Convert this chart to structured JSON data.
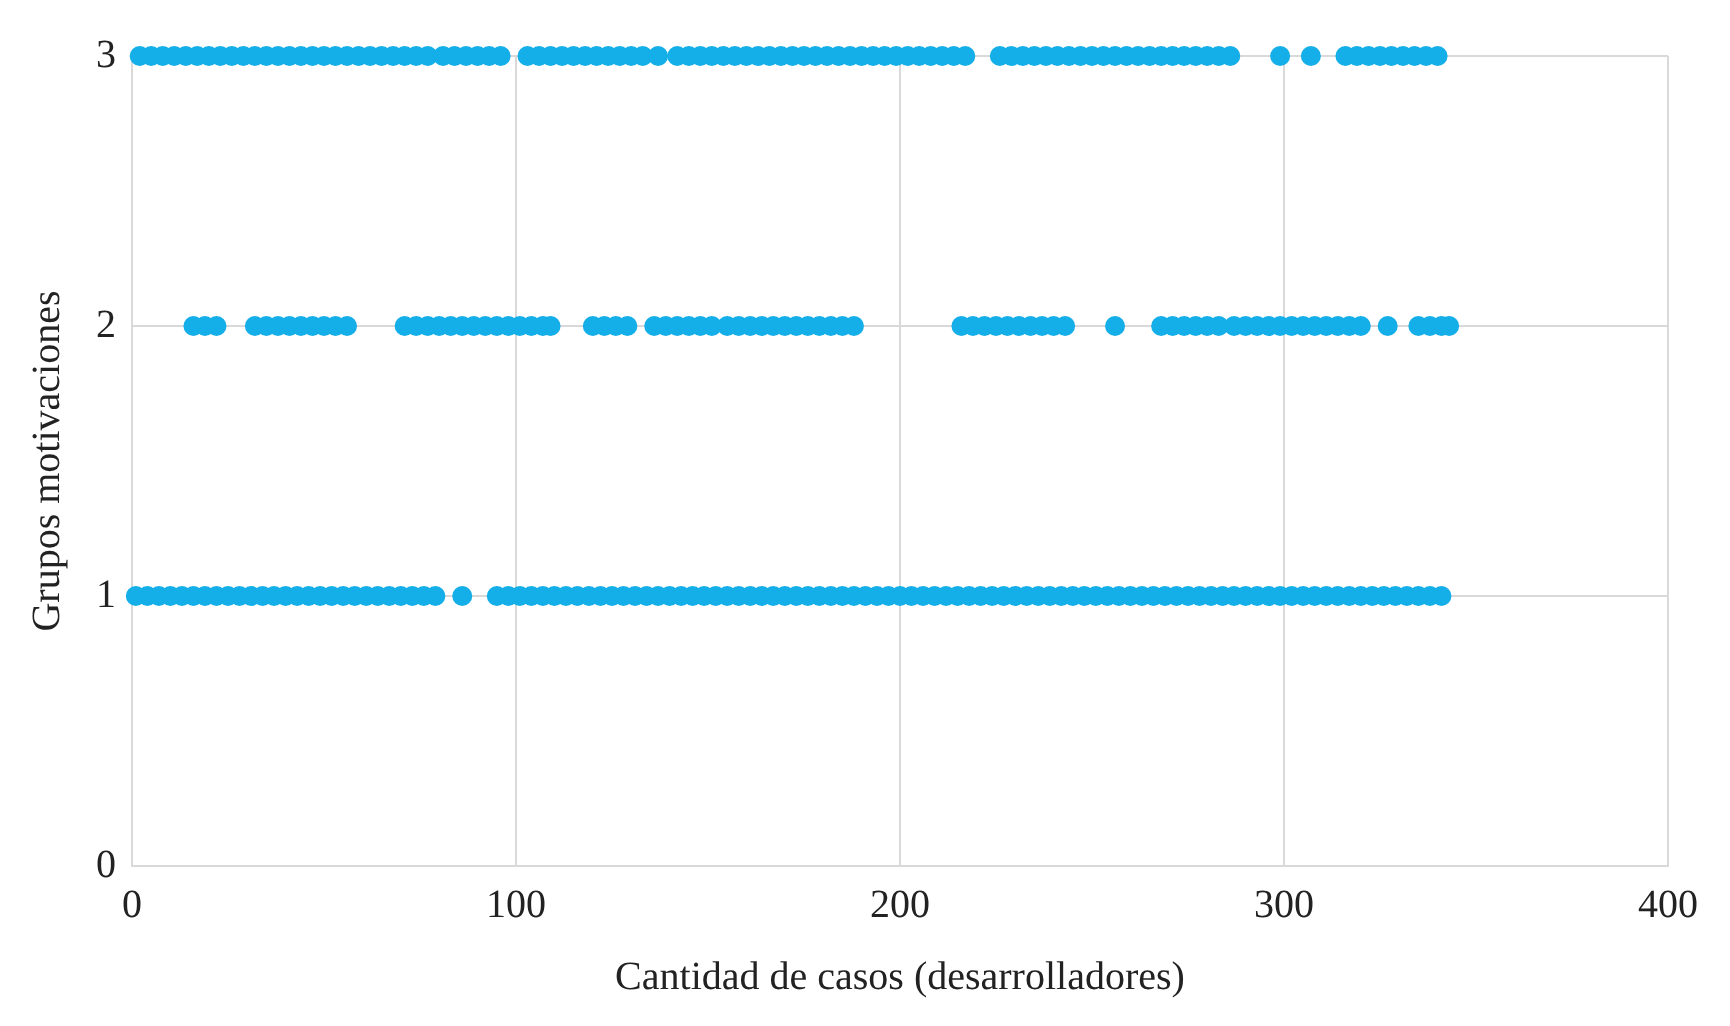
{
  "chart_data": {
    "type": "scatter",
    "xlabel": "Cantidad de casos (desarrolladores)",
    "ylabel": "Grupos motivaciones",
    "xlim": [
      0,
      400
    ],
    "xticks": [
      0,
      100,
      200,
      300,
      400
    ],
    "ylim": [
      0,
      3
    ],
    "yticks": [
      0,
      1,
      2,
      3
    ],
    "grid": true,
    "legend": false,
    "marker": "circle",
    "series": [
      {
        "color": "#14aee8",
        "x": [
          1,
          4,
          7,
          10,
          13,
          16,
          19,
          22,
          25,
          28,
          31,
          34,
          37,
          40,
          43,
          46,
          49,
          52,
          55,
          58,
          61,
          64,
          67,
          70,
          73,
          76,
          79,
          86,
          95,
          98,
          101,
          104,
          107,
          110,
          113,
          116,
          119,
          122,
          125,
          128,
          131,
          134,
          137,
          140,
          143,
          146,
          149,
          152,
          155,
          158,
          161,
          164,
          167,
          170,
          173,
          176,
          179,
          182,
          185,
          188,
          191,
          194,
          197,
          200,
          203,
          206,
          209,
          212,
          215,
          218,
          221,
          224,
          227,
          230,
          233,
          236,
          239,
          242,
          245,
          248,
          251,
          254,
          257,
          260,
          263,
          266,
          269,
          272,
          275,
          278,
          281,
          284,
          287,
          290,
          293,
          296,
          299,
          302,
          305,
          308,
          311,
          314,
          317,
          320,
          323,
          326,
          329,
          332,
          335,
          338,
          341
        ],
        "values": [
          1,
          1,
          1,
          1,
          1,
          1,
          1,
          1,
          1,
          1,
          1,
          1,
          1,
          1,
          1,
          1,
          1,
          1,
          1,
          1,
          1,
          1,
          1,
          1,
          1,
          1,
          1,
          1,
          1,
          1,
          1,
          1,
          1,
          1,
          1,
          1,
          1,
          1,
          1,
          1,
          1,
          1,
          1,
          1,
          1,
          1,
          1,
          1,
          1,
          1,
          1,
          1,
          1,
          1,
          1,
          1,
          1,
          1,
          1,
          1,
          1,
          1,
          1,
          1,
          1,
          1,
          1,
          1,
          1,
          1,
          1,
          1,
          1,
          1,
          1,
          1,
          1,
          1,
          1,
          1,
          1,
          1,
          1,
          1,
          1,
          1,
          1,
          1,
          1,
          1,
          1,
          1,
          1,
          1,
          1,
          1,
          1,
          1,
          1,
          1,
          1,
          1,
          1,
          1,
          1,
          1,
          1,
          1,
          1,
          1,
          1
        ]
      },
      {
        "color": "#14aee8",
        "x": [
          16,
          19,
          22,
          32,
          35,
          38,
          41,
          44,
          47,
          50,
          53,
          56,
          71,
          74,
          77,
          80,
          83,
          86,
          89,
          92,
          95,
          98,
          101,
          104,
          107,
          109,
          120,
          123,
          126,
          129,
          136,
          139,
          142,
          145,
          148,
          151,
          155,
          158,
          161,
          164,
          167,
          170,
          173,
          176,
          179,
          182,
          185,
          188,
          216,
          219,
          222,
          225,
          228,
          231,
          234,
          237,
          240,
          243,
          256,
          268,
          271,
          274,
          277,
          280,
          283,
          287,
          290,
          293,
          296,
          299,
          302,
          305,
          308,
          311,
          314,
          317,
          320,
          327,
          335,
          338,
          341,
          343
        ],
        "values": [
          2,
          2,
          2,
          2,
          2,
          2,
          2,
          2,
          2,
          2,
          2,
          2,
          2,
          2,
          2,
          2,
          2,
          2,
          2,
          2,
          2,
          2,
          2,
          2,
          2,
          2,
          2,
          2,
          2,
          2,
          2,
          2,
          2,
          2,
          2,
          2,
          2,
          2,
          2,
          2,
          2,
          2,
          2,
          2,
          2,
          2,
          2,
          2,
          2,
          2,
          2,
          2,
          2,
          2,
          2,
          2,
          2,
          2,
          2,
          2,
          2,
          2,
          2,
          2,
          2,
          2,
          2,
          2,
          2,
          2,
          2,
          2,
          2,
          2,
          2,
          2,
          2,
          2,
          2,
          2,
          2,
          2
        ]
      },
      {
        "color": "#14aee8",
        "x": [
          2,
          5,
          8,
          11,
          14,
          17,
          20,
          23,
          26,
          29,
          32,
          35,
          38,
          41,
          44,
          47,
          50,
          53,
          56,
          59,
          62,
          65,
          68,
          71,
          74,
          77,
          81,
          84,
          87,
          90,
          93,
          96,
          103,
          106,
          109,
          112,
          115,
          118,
          121,
          124,
          127,
          130,
          133,
          137,
          142,
          145,
          148,
          151,
          154,
          157,
          160,
          163,
          166,
          169,
          172,
          175,
          178,
          181,
          184,
          187,
          190,
          193,
          196,
          199,
          202,
          205,
          208,
          211,
          214,
          217,
          226,
          229,
          232,
          235,
          238,
          241,
          244,
          247,
          250,
          253,
          256,
          259,
          262,
          265,
          268,
          271,
          274,
          277,
          280,
          283,
          286,
          299,
          307,
          316,
          319,
          322,
          325,
          328,
          331,
          334,
          337,
          340
        ],
        "values": [
          3,
          3,
          3,
          3,
          3,
          3,
          3,
          3,
          3,
          3,
          3,
          3,
          3,
          3,
          3,
          3,
          3,
          3,
          3,
          3,
          3,
          3,
          3,
          3,
          3,
          3,
          3,
          3,
          3,
          3,
          3,
          3,
          3,
          3,
          3,
          3,
          3,
          3,
          3,
          3,
          3,
          3,
          3,
          3,
          3,
          3,
          3,
          3,
          3,
          3,
          3,
          3,
          3,
          3,
          3,
          3,
          3,
          3,
          3,
          3,
          3,
          3,
          3,
          3,
          3,
          3,
          3,
          3,
          3,
          3,
          3,
          3,
          3,
          3,
          3,
          3,
          3,
          3,
          3,
          3,
          3,
          3,
          3,
          3,
          3,
          3,
          3,
          3,
          3,
          3,
          3,
          3,
          3,
          3,
          3,
          3,
          3,
          3,
          3,
          3,
          3,
          3
        ]
      }
    ]
  }
}
